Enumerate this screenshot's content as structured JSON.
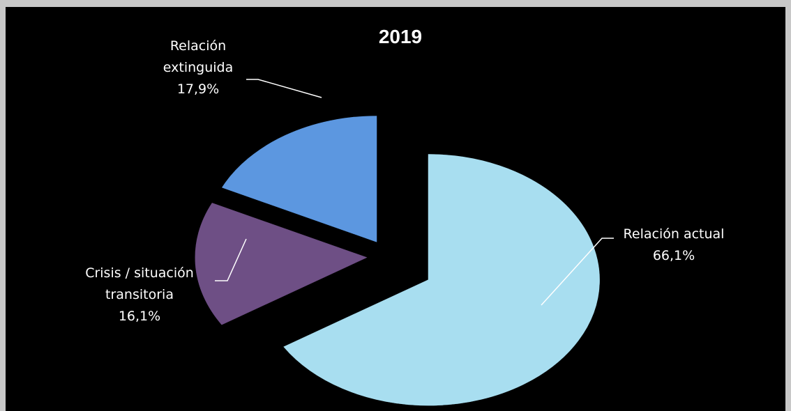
{
  "chart_data": {
    "type": "pie",
    "title": "2019",
    "slices": [
      {
        "label_lines": [
          "Relación actual"
        ],
        "value": 66.1,
        "value_label": "66,1%",
        "color": "#a8def0"
      },
      {
        "label_lines": [
          "Crisis / situación",
          "transitoria"
        ],
        "value": 16.1,
        "value_label": "16,1%",
        "color": "#6e4f85"
      },
      {
        "label_lines": [
          "Relación",
          "extinguida"
        ],
        "value": 17.9,
        "value_label": "17,9%",
        "color": "#5b97e0"
      }
    ],
    "exploded": true,
    "legend": "none"
  }
}
